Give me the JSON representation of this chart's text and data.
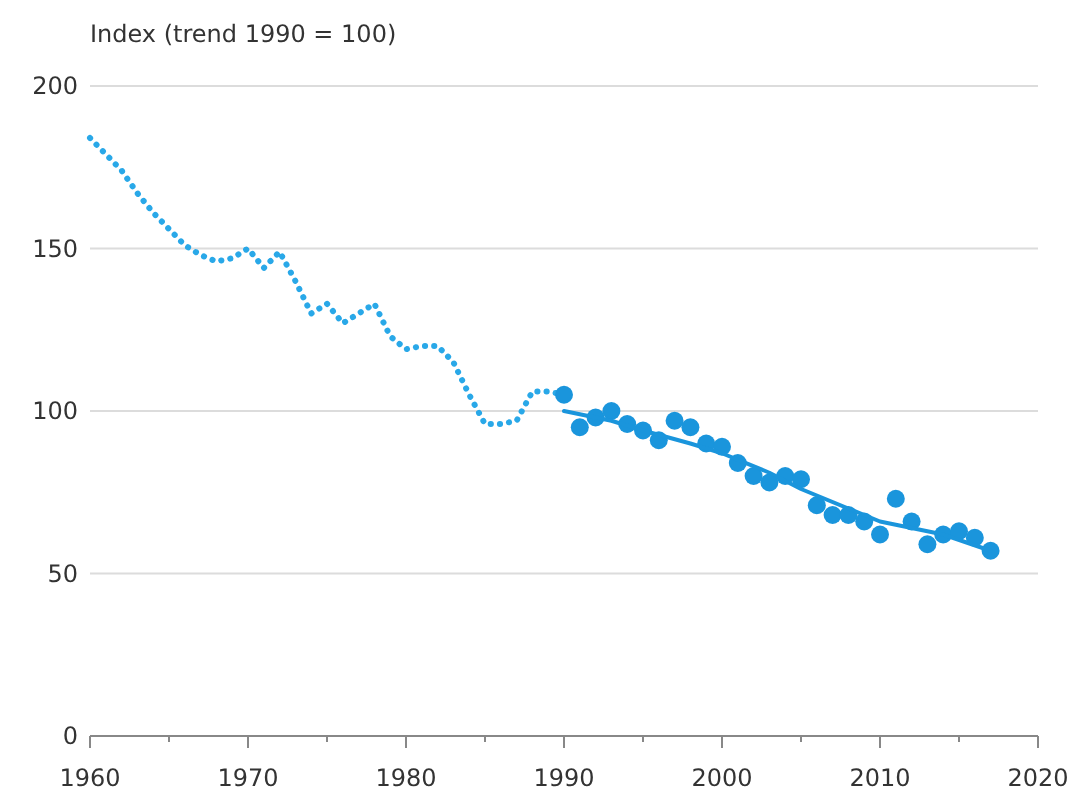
{
  "chart_data": {
    "type": "line",
    "ylabel": "Index (trend 1990 = 100)",
    "xlim": [
      1960,
      2020
    ],
    "xticks": [
      1960,
      {
        "value": 1965,
        "label": null
      },
      1970,
      {
        "value": 1975,
        "label": null
      },
      1980,
      {
        "value": 1985,
        "label": null
      },
      1990,
      {
        "value": 1995,
        "label": null
      },
      2000,
      {
        "value": 2005,
        "label": null
      },
      2010,
      {
        "value": 2015,
        "label": null
      },
      2020
    ],
    "ylim": [
      0,
      200
    ],
    "yticks": [
      0,
      50,
      100,
      150,
      200
    ],
    "grid": "y",
    "series": [
      {
        "line_style": "dotted",
        "marker": "none",
        "color": "#29a8e8",
        "x": [
          1960,
          1961,
          1962,
          1963,
          1964,
          1965,
          1966,
          1967,
          1968,
          1969,
          1970,
          1971,
          1972,
          1973,
          1974,
          1975,
          1976,
          1977,
          1978,
          1979,
          1980,
          1981,
          1982,
          1983,
          1984,
          1985,
          1986,
          1987,
          1988,
          1989,
          1990
        ],
        "values": [
          184,
          179,
          174,
          167,
          161,
          156,
          151,
          148,
          146,
          147,
          150,
          144,
          149,
          140,
          130,
          133,
          127,
          130,
          133,
          123,
          119,
          120,
          120,
          115,
          105,
          96,
          96,
          97,
          106,
          106,
          105
        ]
      },
      {
        "type": "scatter",
        "marker": "circle",
        "color": "#1a95dc",
        "x": [
          1990,
          1991,
          1992,
          1993,
          1994,
          1995,
          1996,
          1997,
          1998,
          1999,
          2000,
          2001,
          2002,
          2003,
          2004,
          2005,
          2006,
          2007,
          2008,
          2009,
          2010,
          2011,
          2012,
          2013,
          2014,
          2015,
          2016,
          2017
        ],
        "values": [
          105,
          95,
          98,
          100,
          96,
          94,
          91,
          97,
          95,
          90,
          89,
          84,
          80,
          78,
          80,
          79,
          71,
          68,
          68,
          66,
          62,
          73,
          66,
          59,
          62,
          63,
          61,
          57
        ]
      },
      {
        "line_style": "solid",
        "marker": "none",
        "color": "#1a95dc",
        "x": [
          1990,
          1993,
          1995,
          1998,
          2000,
          2003,
          2005,
          2008,
          2010,
          2012,
          2014,
          2017
        ],
        "values": [
          100,
          97,
          94,
          90,
          87,
          81,
          76,
          70,
          66,
          64,
          62,
          57
        ]
      }
    ]
  }
}
